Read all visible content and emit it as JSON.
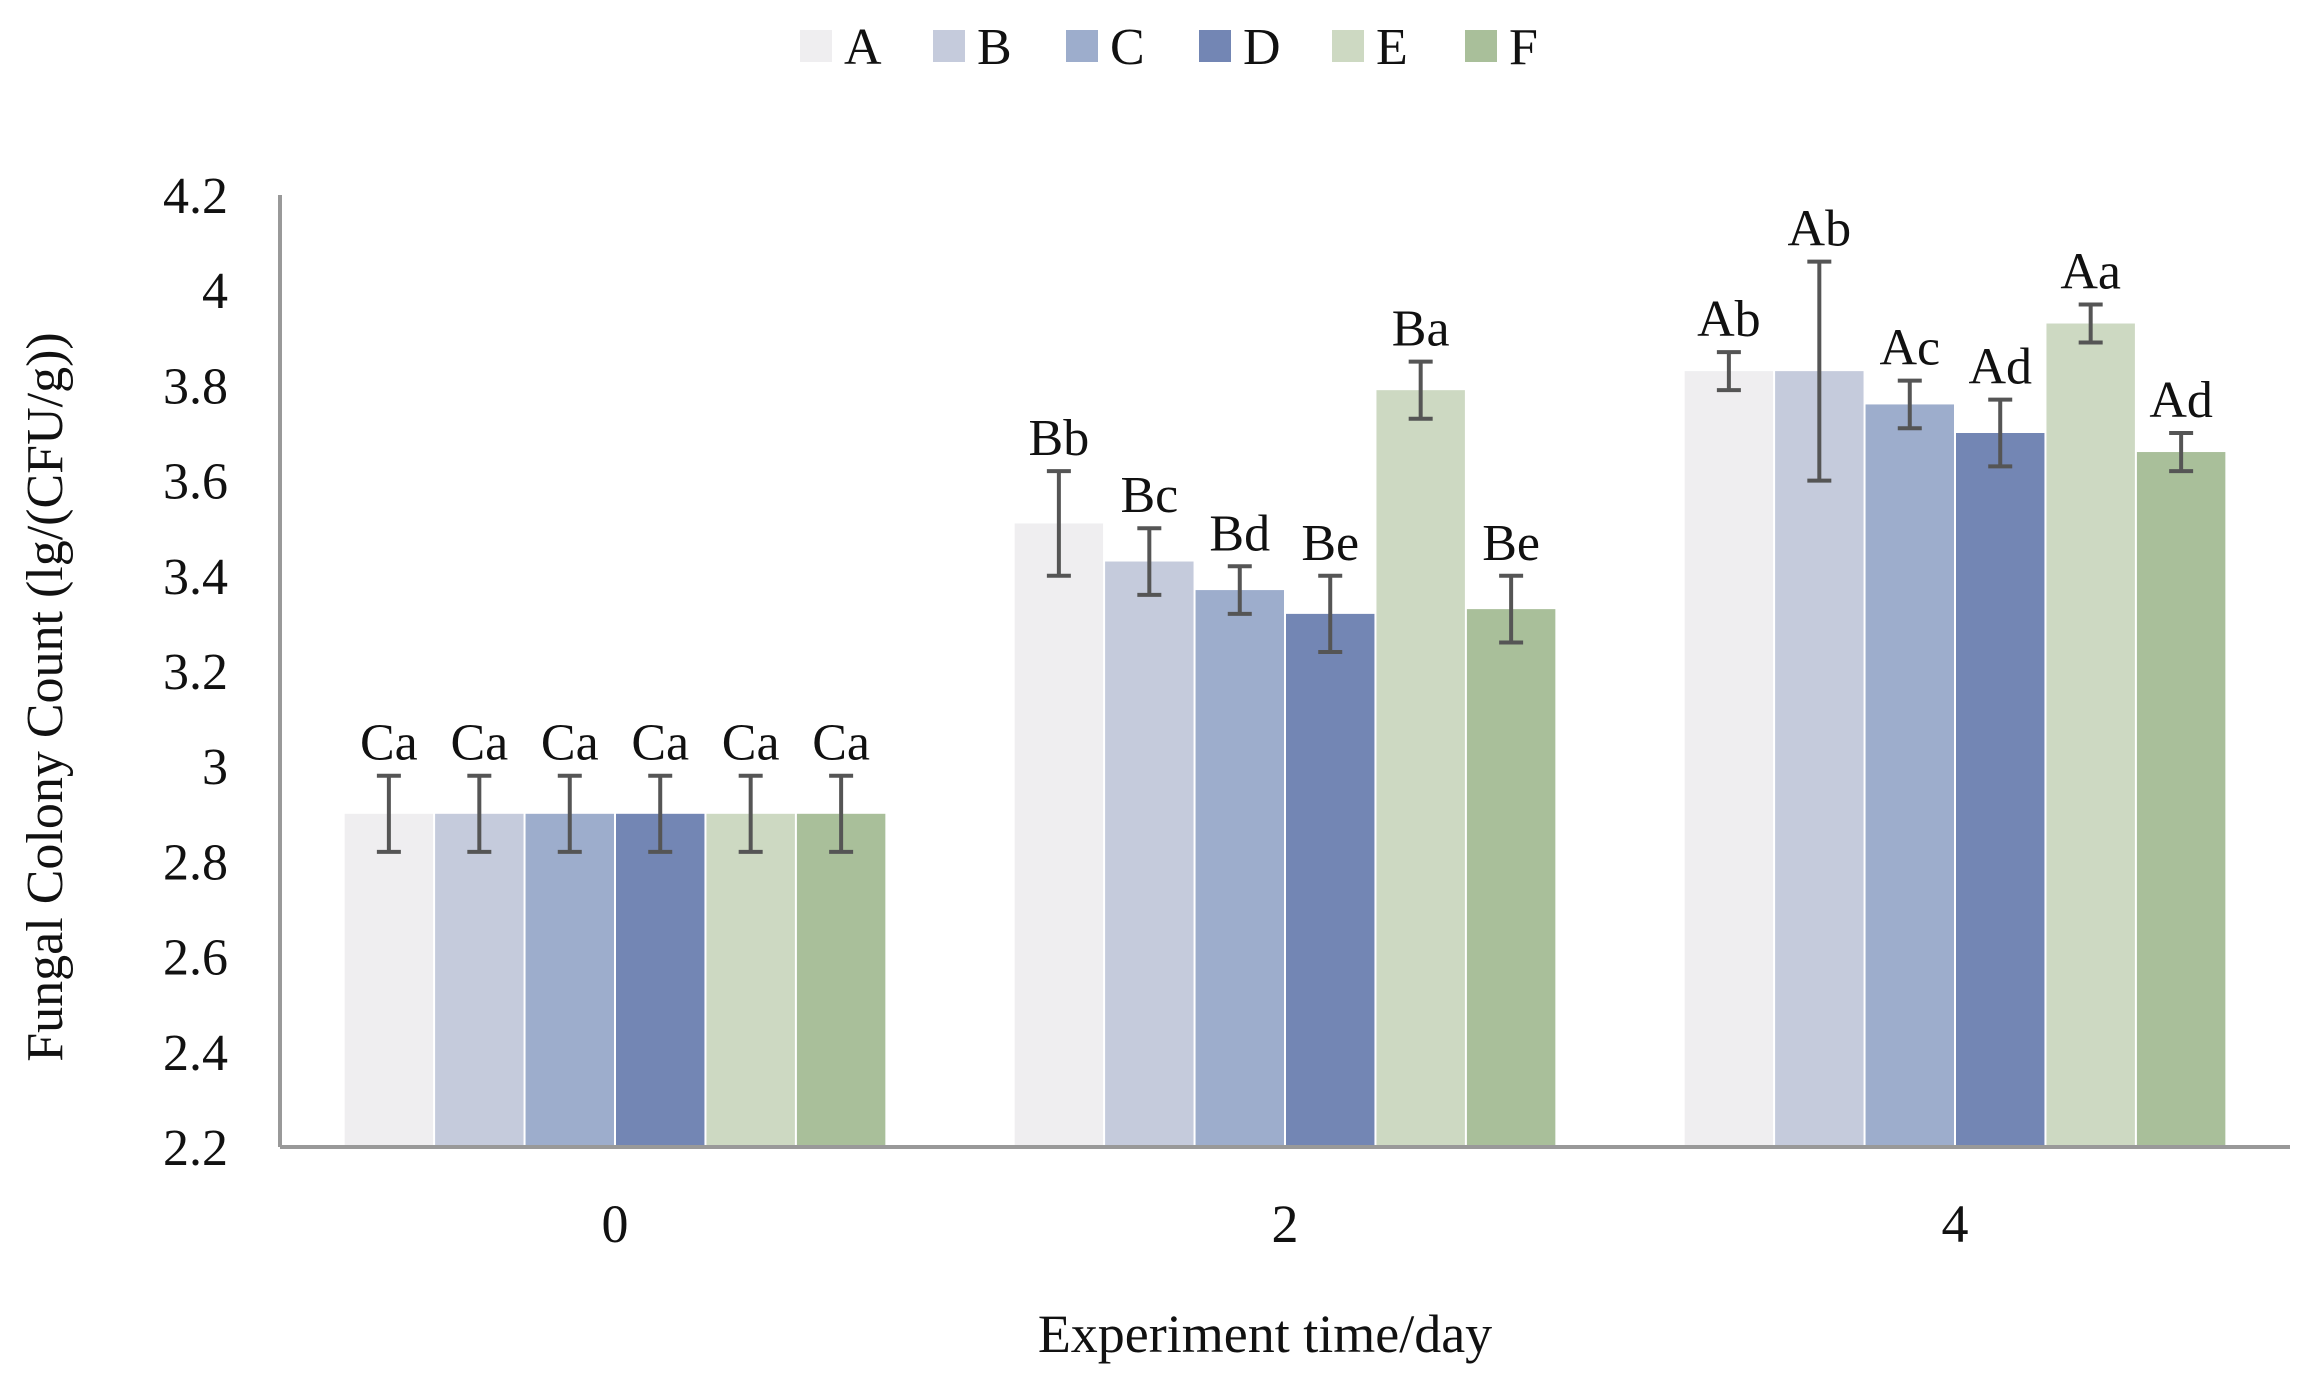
{
  "chart_data": {
    "type": "bar",
    "title": "",
    "xlabel": "Experiment time/day",
    "ylabel": "Fungal Colony Count (lg/(CFU/g))",
    "categories": [
      "0",
      "2",
      "4"
    ],
    "ylim": [
      2.2,
      4.2
    ],
    "yticks": [
      "2.2",
      "2.4",
      "2.6",
      "2.8",
      "3",
      "3.2",
      "3.4",
      "3.6",
      "3.8",
      "4",
      "4.2"
    ],
    "grid": false,
    "legend_position": "top-center",
    "series": [
      {
        "name": "A",
        "color": "#efeef0",
        "values": [
          2.9,
          3.51,
          3.83
        ],
        "errors": [
          0.08,
          0.11,
          0.04
        ],
        "labels": [
          "Ca",
          "Bb",
          "Ab"
        ]
      },
      {
        "name": "B",
        "color": "#c5cbdc",
        "values": [
          2.9,
          3.43,
          3.83
        ],
        "errors": [
          0.08,
          0.07,
          0.23
        ],
        "labels": [
          "Ca",
          "Bc",
          "Ab"
        ]
      },
      {
        "name": "C",
        "color": "#9dadcc",
        "values": [
          2.9,
          3.37,
          3.76
        ],
        "errors": [
          0.08,
          0.05,
          0.05
        ],
        "labels": [
          "Ca",
          "Bd",
          "Ac"
        ]
      },
      {
        "name": "D",
        "color": "#7386b4",
        "values": [
          2.9,
          3.32,
          3.7
        ],
        "errors": [
          0.08,
          0.08,
          0.07
        ],
        "labels": [
          "Ca",
          "Be",
          "Ad"
        ]
      },
      {
        "name": "E",
        "color": "#cdd9c2",
        "values": [
          2.9,
          3.79,
          3.93
        ],
        "errors": [
          0.08,
          0.06,
          0.04
        ],
        "labels": [
          "Ca",
          "Ba",
          "Aa"
        ]
      },
      {
        "name": "F",
        "color": "#a9bf9a",
        "values": [
          2.9,
          3.33,
          3.66
        ],
        "errors": [
          0.08,
          0.07,
          0.04
        ],
        "labels": [
          "Ca",
          "Be",
          "Ad"
        ]
      }
    ]
  }
}
